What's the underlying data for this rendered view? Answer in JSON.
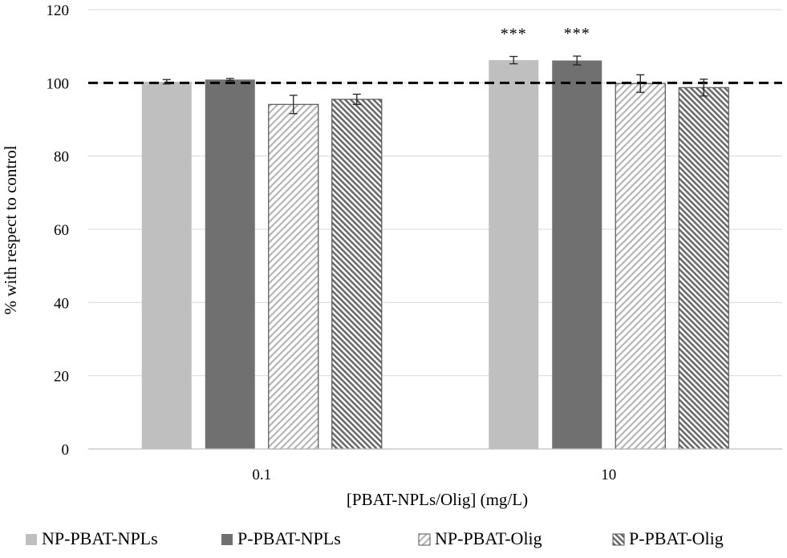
{
  "chart_data": {
    "type": "bar",
    "title": "",
    "xlabel": "[PBAT-NPLs/Olig]  (mg/L)",
    "ylabel": "% with respect to control",
    "ylim": [
      0,
      120
    ],
    "yticks": [
      0,
      20,
      40,
      60,
      80,
      100,
      120
    ],
    "grid": true,
    "legend_position": "bottom",
    "categories": [
      "0.1",
      "10"
    ],
    "reference_line": {
      "value": 100,
      "style": "dashed"
    },
    "series": [
      {
        "name": "NP-PBAT-NPLs",
        "values": [
          100.3,
          106.2
        ],
        "errors": [
          0.6,
          1.0
        ],
        "annotations": [
          "",
          "***"
        ],
        "color": "#bfbfbf",
        "pattern": "solid"
      },
      {
        "name": "P-PBAT-NPLs",
        "values": [
          100.9,
          106.1
        ],
        "errors": [
          0.3,
          1.2
        ],
        "annotations": [
          "",
          "***"
        ],
        "color": "#707070",
        "pattern": "solid"
      },
      {
        "name": "NP-PBAT-Olig",
        "values": [
          94.1,
          99.8
        ],
        "errors": [
          2.5,
          2.4
        ],
        "annotations": [
          "",
          ""
        ],
        "color": "#bfbfbf",
        "pattern": "light-diagonal"
      },
      {
        "name": "P-PBAT-Olig",
        "values": [
          95.5,
          98.7
        ],
        "errors": [
          1.4,
          2.3
        ],
        "annotations": [
          "",
          ""
        ],
        "color": "#707070",
        "pattern": "dark-diagonal"
      }
    ]
  }
}
